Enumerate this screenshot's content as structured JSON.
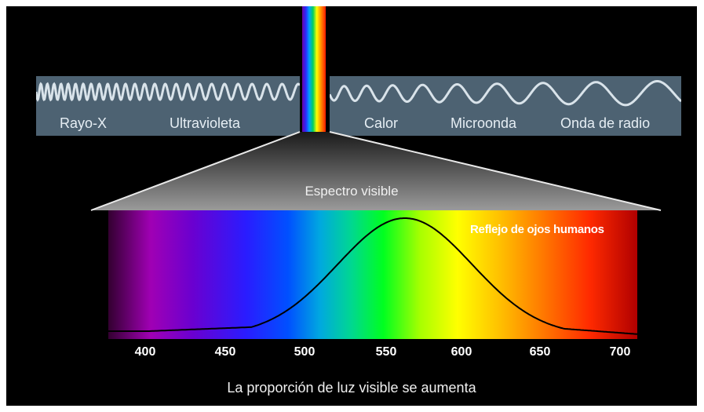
{
  "electromagnetic_band": {
    "left_labels": [
      "Rayo-X",
      "Ultravioleta"
    ],
    "right_labels": [
      "Calor",
      "Microonda",
      "Onda de radio"
    ]
  },
  "visible_spectrum": {
    "title": "Espectro visible",
    "curve_label": "Reflejo de ojos humanos",
    "ticks": [
      "400",
      "450",
      "500",
      "550",
      "600",
      "650",
      "700"
    ]
  },
  "caption": "La proporción de luz visible se aumenta",
  "colors": {
    "background": "#000000",
    "band": "#4d6272",
    "wave": "#d9e3ea",
    "curve": "#000000"
  }
}
